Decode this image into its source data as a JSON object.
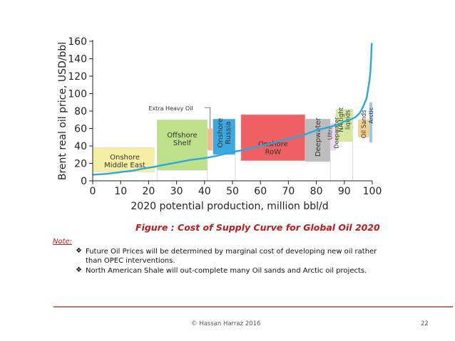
{
  "chart_data": {
    "type": "area",
    "xlabel": "2020 potential production, million bbl/d",
    "ylabel": "Brent real oil price, USD/bbl",
    "xlim": [
      0,
      100
    ],
    "ylim": [
      0,
      160
    ],
    "xticks": [
      0,
      10,
      20,
      30,
      40,
      50,
      60,
      70,
      80,
      90,
      100
    ],
    "yticks": [
      0,
      20,
      40,
      60,
      80,
      100,
      120,
      140,
      160
    ],
    "grid": false,
    "curve": {
      "color": "#2aa7dc",
      "x": [
        0,
        5,
        10,
        15,
        18,
        22,
        25,
        30,
        35,
        40,
        45,
        50,
        55,
        60,
        65,
        70,
        75,
        80,
        85,
        88,
        90,
        92,
        94,
        95,
        96,
        97,
        98,
        98.5,
        99,
        99.3,
        99.6,
        99.8
      ],
      "y": [
        7,
        8,
        10,
        12,
        14,
        16,
        18,
        21,
        24,
        26,
        29,
        33,
        36,
        40,
        44,
        48,
        52,
        58,
        62,
        65,
        68,
        70,
        73,
        76,
        80,
        87,
        95,
        105,
        115,
        125,
        140,
        158
      ]
    },
    "segments": [
      {
        "label": "Onshore Middle East",
        "x0": 0,
        "x1": 22,
        "y0": 10,
        "y1": 38,
        "color": "#f5efa4"
      },
      {
        "label": "Offshore Shelf",
        "x0": 23,
        "x1": 41,
        "y0": 12,
        "y1": 70,
        "color": "#bfe08a"
      },
      {
        "label": "Extra Heavy Oil",
        "x0": 41,
        "x1": 43,
        "y0": 35,
        "y1": 60,
        "color": "#f6b98a"
      },
      {
        "label": "Onshore Russia",
        "x0": 43,
        "x1": 51,
        "y0": 30,
        "y1": 71,
        "color": "#3ba8e0"
      },
      {
        "label": "Onshore RoW",
        "x0": 53,
        "x1": 76,
        "y0": 23,
        "y1": 76,
        "color": "#ef6065"
      },
      {
        "label": "Deepwater",
        "x0": 76,
        "x1": 85,
        "y0": 22,
        "y1": 71,
        "color": "#bdbdbd"
      },
      {
        "label": "Ultra Deepwater",
        "x0": 85,
        "x1": 87,
        "y0": 35,
        "y1": 66,
        "color": "#ecd9ef"
      },
      {
        "label": "NA tight liquids",
        "x0": 87,
        "x1": 93,
        "y0": 45,
        "y1": 82,
        "color": "#d6ea9e"
      },
      {
        "label": "Oil Sands",
        "x0": 95,
        "x1": 99,
        "y0": 50,
        "y1": 70,
        "color": "#f7cf8f"
      },
      {
        "label": "Arctic",
        "x0": 99,
        "x1": 100,
        "y0": 44,
        "y1": 90,
        "color": "#8fc7ea"
      }
    ],
    "annotation": {
      "text": "Extra Heavy Oil",
      "target_x": 42,
      "target_y": 60
    }
  },
  "caption": "Figure : Cost of Supply  Curve for Global Oil 2020",
  "note_label": "Note:",
  "bullets": [
    "Future Oil Prices will be determined by marginal cost of developing new oil rather than OPEC interventions.",
    "North American Shale will out-complete many Oil sands and Arctic oil projects."
  ],
  "footer": {
    "text": "©  Hassan Harraz  2016",
    "page": "22",
    "rule_color": "#b5766d"
  },
  "icons": {
    "bullet": "diamond-bullet-icon"
  }
}
